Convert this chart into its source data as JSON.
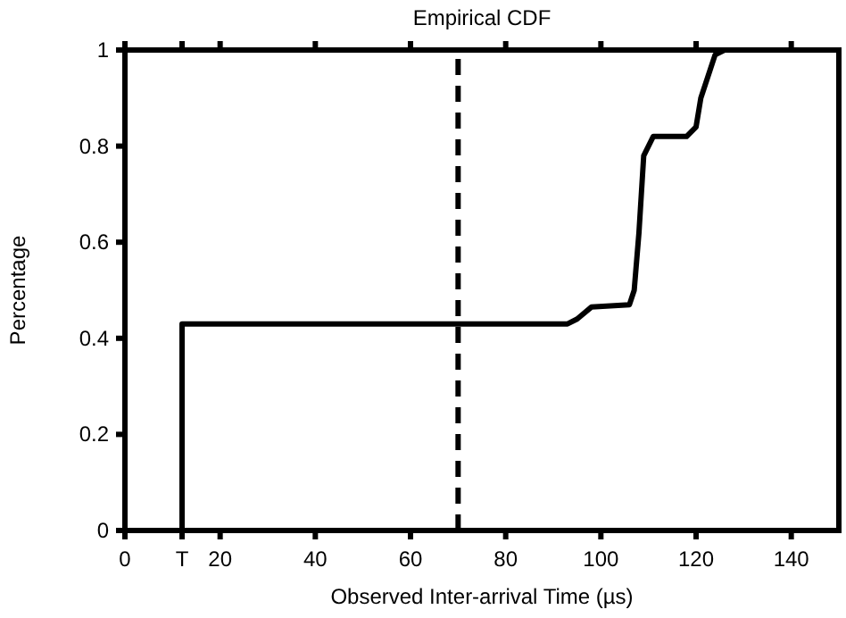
{
  "chart_data": {
    "type": "line",
    "title": "Empirical CDF",
    "xlabel": "Observed Inter-arrival Time (µs)",
    "ylabel": "Percentage",
    "xlim": [
      0,
      150
    ],
    "xticks": [
      0,
      {
        "value": 12,
        "label": "T"
      },
      20,
      40,
      60,
      80,
      100,
      120,
      140
    ],
    "ylim": [
      0,
      1
    ],
    "yticks": [
      0,
      0.2,
      0.4,
      0.6,
      0.8,
      1
    ],
    "grid": false,
    "marker": "none",
    "series": [
      {
        "color": "#000000",
        "line_style": "dashed",
        "x": [
          70,
          70
        ],
        "values": [
          0,
          1
        ]
      },
      {
        "color": "#000000",
        "line_style": "solid",
        "x": [
          12,
          12,
          93,
          95,
          98,
          106,
          107,
          108,
          109,
          111,
          118,
          120,
          121,
          123,
          124,
          126,
          150
        ],
        "values": [
          0,
          0.43,
          0.43,
          0.44,
          0.465,
          0.47,
          0.5,
          0.62,
          0.78,
          0.82,
          0.82,
          0.84,
          0.9,
          0.96,
          0.99,
          1,
          1
        ]
      }
    ]
  }
}
